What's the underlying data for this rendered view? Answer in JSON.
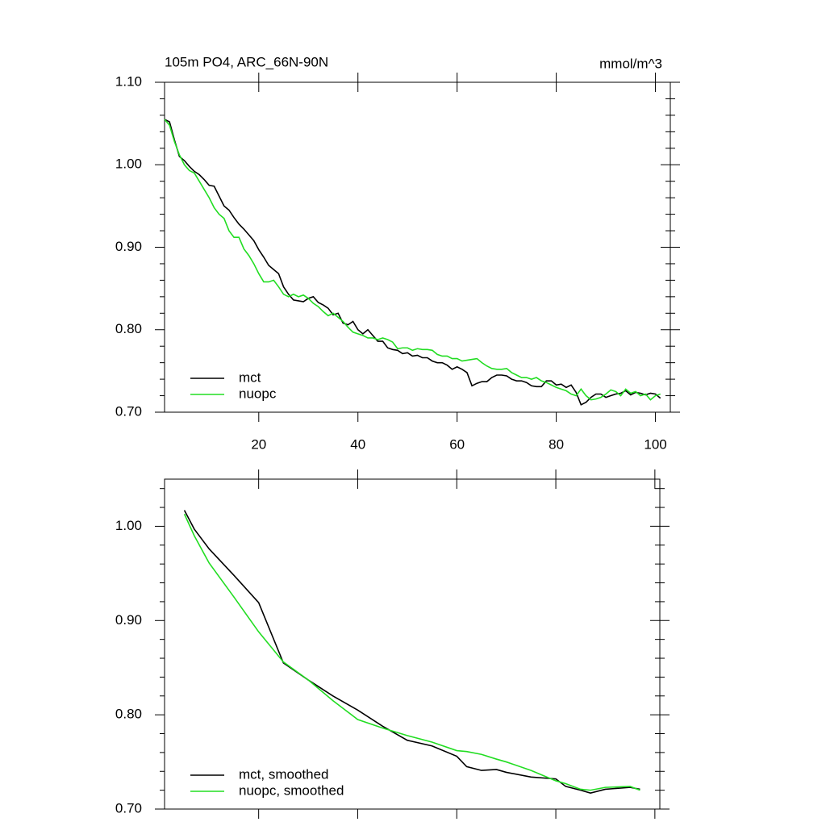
{
  "chart_data": [
    {
      "type": "line",
      "title": "105m PO4, ARC_66N-90N",
      "units": "mmol/m^3",
      "x": [
        1,
        2,
        3,
        4,
        5,
        6,
        7,
        8,
        9,
        10,
        11,
        12,
        13,
        14,
        15,
        16,
        17,
        18,
        19,
        20,
        21,
        22,
        23,
        24,
        25,
        26,
        27,
        28,
        29,
        30,
        31,
        32,
        33,
        34,
        35,
        36,
        37,
        38,
        39,
        40,
        41,
        42,
        43,
        44,
        45,
        46,
        47,
        48,
        49,
        50,
        51,
        52,
        53,
        54,
        55,
        56,
        57,
        58,
        59,
        60,
        61,
        62,
        63,
        64,
        65,
        66,
        67,
        68,
        69,
        70,
        71,
        72,
        73,
        74,
        75,
        76,
        77,
        78,
        79,
        80,
        81,
        82,
        83,
        84,
        85,
        86,
        87,
        88,
        89,
        90,
        91,
        92,
        93,
        94,
        95,
        96,
        97,
        98,
        99,
        100,
        101
      ],
      "series": [
        {
          "name": "mct",
          "color": "#000000",
          "values": [
            1.055,
            1.052,
            1.03,
            1.01,
            1.005,
            0.998,
            0.992,
            0.988,
            0.982,
            0.975,
            0.974,
            0.962,
            0.95,
            0.945,
            0.936,
            0.928,
            0.922,
            0.915,
            0.908,
            0.897,
            0.888,
            0.878,
            0.873,
            0.868,
            0.852,
            0.843,
            0.836,
            0.835,
            0.834,
            0.838,
            0.84,
            0.833,
            0.83,
            0.826,
            0.818,
            0.82,
            0.808,
            0.806,
            0.81,
            0.8,
            0.795,
            0.8,
            0.793,
            0.786,
            0.786,
            0.778,
            0.776,
            0.775,
            0.771,
            0.772,
            0.768,
            0.769,
            0.766,
            0.766,
            0.762,
            0.76,
            0.76,
            0.757,
            0.752,
            0.755,
            0.752,
            0.748,
            0.732,
            0.735,
            0.737,
            0.737,
            0.742,
            0.745,
            0.745,
            0.744,
            0.74,
            0.738,
            0.738,
            0.736,
            0.732,
            0.731,
            0.731,
            0.738,
            0.738,
            0.733,
            0.734,
            0.73,
            0.733,
            0.724,
            0.709,
            0.712,
            0.718,
            0.722,
            0.722,
            0.718,
            0.72,
            0.722,
            0.723,
            0.726,
            0.721,
            0.724,
            0.723,
            0.721,
            0.723,
            0.722,
            0.717
          ]
        },
        {
          "name": "nuopc",
          "color": "#22dd22",
          "values": [
            1.055,
            1.048,
            1.028,
            1.012,
            1.0,
            0.993,
            0.99,
            0.98,
            0.97,
            0.96,
            0.948,
            0.94,
            0.935,
            0.92,
            0.912,
            0.912,
            0.898,
            0.89,
            0.88,
            0.868,
            0.858,
            0.858,
            0.86,
            0.852,
            0.843,
            0.84,
            0.843,
            0.84,
            0.842,
            0.838,
            0.832,
            0.828,
            0.822,
            0.817,
            0.82,
            0.815,
            0.81,
            0.803,
            0.797,
            0.795,
            0.793,
            0.79,
            0.79,
            0.788,
            0.79,
            0.788,
            0.785,
            0.777,
            0.778,
            0.778,
            0.775,
            0.777,
            0.776,
            0.776,
            0.775,
            0.77,
            0.768,
            0.768,
            0.765,
            0.765,
            0.762,
            0.763,
            0.764,
            0.765,
            0.76,
            0.756,
            0.753,
            0.752,
            0.752,
            0.753,
            0.748,
            0.745,
            0.742,
            0.742,
            0.74,
            0.742,
            0.738,
            0.736,
            0.733,
            0.73,
            0.728,
            0.726,
            0.722,
            0.72,
            0.728,
            0.72,
            0.715,
            0.716,
            0.718,
            0.722,
            0.727,
            0.725,
            0.72,
            0.728,
            0.723,
            0.725,
            0.72,
            0.722,
            0.715,
            0.72,
            0.722
          ]
        }
      ],
      "xlim": [
        1,
        103
      ],
      "xticks": [
        20,
        40,
        60,
        80,
        100
      ],
      "ylim": [
        0.7,
        1.1
      ],
      "yticks": [
        {
          "value": 0.7,
          "label": "0.70"
        },
        {
          "value": 0.8,
          "label": "0.80"
        },
        {
          "value": 0.9,
          "label": "0.90"
        },
        {
          "value": 1.0,
          "label": "1.00"
        },
        {
          "value": 1.1,
          "label": "1.10"
        }
      ],
      "legend": "lower left"
    },
    {
      "type": "line",
      "x": [
        5,
        7,
        10,
        15,
        20,
        25,
        30,
        35,
        40,
        45,
        50,
        55,
        60,
        62,
        65,
        68,
        70,
        75,
        80,
        82,
        85,
        87,
        90,
        95,
        97
      ],
      "series": [
        {
          "name": "mct, smoothed",
          "color": "#000000",
          "values": [
            1.017,
            0.997,
            0.976,
            0.948,
            0.919,
            0.855,
            0.837,
            0.82,
            0.805,
            0.788,
            0.773,
            0.767,
            0.756,
            0.745,
            0.741,
            0.742,
            0.739,
            0.734,
            0.732,
            0.724,
            0.72,
            0.717,
            0.721,
            0.723,
            0.721
          ]
        },
        {
          "name": "nuopc, smoothed",
          "color": "#22dd22",
          "values": [
            1.013,
            0.99,
            0.961,
            0.925,
            0.888,
            0.856,
            0.837,
            0.815,
            0.795,
            0.786,
            0.778,
            0.771,
            0.762,
            0.761,
            0.758,
            0.753,
            0.75,
            0.741,
            0.73,
            0.727,
            0.721,
            0.72,
            0.723,
            0.724,
            0.72
          ]
        }
      ],
      "xlim": [
        1,
        101
      ],
      "ylim": [
        0.7,
        1.05
      ],
      "yticks": [
        {
          "value": 0.7,
          "label": "0.70"
        },
        {
          "value": 0.8,
          "label": "0.80"
        },
        {
          "value": 0.9,
          "label": "0.90"
        },
        {
          "value": 1.0,
          "label": "1.00"
        }
      ],
      "legend": "lower left"
    }
  ]
}
